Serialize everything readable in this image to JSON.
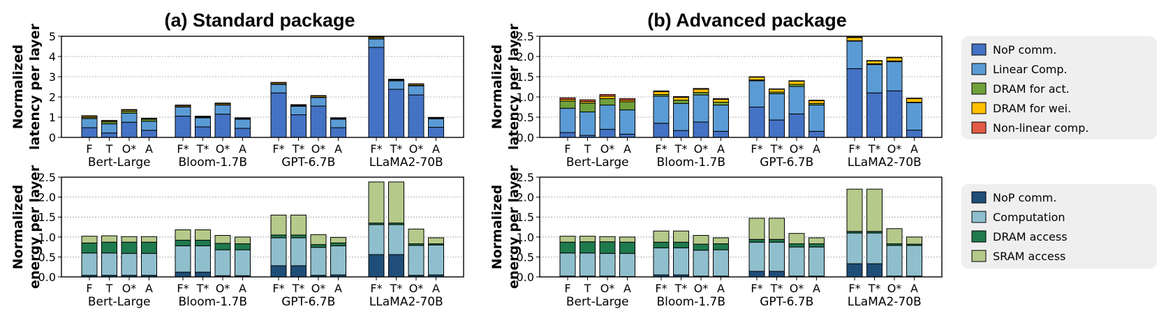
{
  "titles": {
    "left": "(a) Standard package",
    "right": "(b) Advanced package"
  },
  "groups": [
    "Bert-Large",
    "Bloom-1.7B",
    "GPT-6.7B",
    "LLaMA2-70B"
  ],
  "colors": {
    "latency": [
      "#4472c4",
      "#5b9bd5",
      "#70a03c",
      "#ffc000",
      "#e35b46"
    ],
    "energy": [
      "#1f4e79",
      "#8fbfcd",
      "#1f7a4d",
      "#b5c98a"
    ]
  },
  "legend_latency": [
    "NoP comm.",
    "Linear Comp.",
    "DRAM for act.",
    "DRAM for wei.",
    "Non-linear comp."
  ],
  "legend_energy": [
    "NoP comm.",
    "Computation",
    "DRAM access",
    "SRAM access"
  ],
  "chart_data": [
    {
      "id": "latency-standard",
      "type": "bar",
      "stacked": true,
      "title": "(a) Standard package",
      "ylabel": "Normalized latency per layer",
      "ylim": [
        0,
        5
      ],
      "yticks": [
        "0",
        "1",
        "2",
        "3",
        "4",
        "5"
      ],
      "grid": true,
      "groups": [
        "Bert-Large",
        "Bloom-1.7B",
        "GPT-6.7B",
        "LLaMA2-70B"
      ],
      "categories": [
        [
          "F",
          "T",
          "O*",
          "A"
        ],
        [
          "F*",
          "T*",
          "O*",
          "A"
        ],
        [
          "F*",
          "T*",
          "O*",
          "A"
        ],
        [
          "F*",
          "T*",
          "O*",
          "A"
        ]
      ],
      "series": [
        {
          "name": "NoP comm.",
          "values": [
            [
              0.48,
              0.22,
              0.75,
              0.35
            ],
            [
              1.05,
              0.52,
              1.15,
              0.45
            ],
            [
              2.2,
              1.12,
              1.55,
              0.48
            ],
            [
              4.45,
              2.38,
              2.1,
              0.5
            ]
          ]
        },
        {
          "name": "Linear Comp.",
          "values": [
            [
              0.45,
              0.45,
              0.45,
              0.45
            ],
            [
              0.45,
              0.45,
              0.45,
              0.45
            ],
            [
              0.42,
              0.42,
              0.42,
              0.42
            ],
            [
              0.42,
              0.42,
              0.45,
              0.42
            ]
          ]
        },
        {
          "name": "DRAM for act.",
          "values": [
            [
              0.06,
              0.1,
              0.1,
              0.1
            ],
            [
              0.02,
              0.02,
              0.02,
              0.02
            ],
            [
              0.02,
              0.02,
              0.02,
              0.02
            ],
            [
              0.02,
              0.02,
              0.02,
              0.02
            ]
          ]
        },
        {
          "name": "DRAM for wei.",
          "values": [
            [
              0.06,
              0.05,
              0.06,
              0.03
            ],
            [
              0.06,
              0.04,
              0.06,
              0.03
            ],
            [
              0.06,
              0.04,
              0.06,
              0.03
            ],
            [
              0.06,
              0.04,
              0.06,
              0.03
            ]
          ]
        },
        {
          "name": "Non-linear comp.",
          "values": [
            [
              0.02,
              0.02,
              0.02,
              0.02
            ],
            [
              0.02,
              0.02,
              0.02,
              0.02
            ],
            [
              0.02,
              0.02,
              0.02,
              0.02
            ],
            [
              0.02,
              0.02,
              0.02,
              0.02
            ]
          ]
        }
      ]
    },
    {
      "id": "latency-advanced",
      "type": "bar",
      "stacked": true,
      "title": "(b) Advanced package",
      "ylabel": "Normalized latency per layer",
      "ylim": [
        0,
        2.5
      ],
      "yticks": [
        "0.0",
        "0.5",
        "1.0",
        "1.5",
        "2.0",
        "2.5"
      ],
      "grid": true,
      "groups": [
        "Bert-Large",
        "Bloom-1.7B",
        "GPT-6.7B",
        "LLaMA2-70B"
      ],
      "categories": [
        [
          "F",
          "T",
          "O*",
          "A"
        ],
        [
          "F*",
          "T*",
          "O*",
          "A"
        ],
        [
          "F*",
          "T*",
          "O*",
          "A"
        ],
        [
          "F*",
          "T*",
          "O*",
          "A"
        ]
      ],
      "series": [
        {
          "name": "NoP comm.",
          "values": [
            [
              0.12,
              0.05,
              0.2,
              0.08
            ],
            [
              0.35,
              0.17,
              0.38,
              0.15
            ],
            [
              0.75,
              0.43,
              0.58,
              0.15
            ],
            [
              1.7,
              1.1,
              1.15,
              0.18
            ]
          ]
        },
        {
          "name": "Linear Comp.",
          "values": [
            [
              0.6,
              0.58,
              0.6,
              0.6
            ],
            [
              0.67,
              0.67,
              0.67,
              0.65
            ],
            [
              0.65,
              0.65,
              0.68,
              0.65
            ],
            [
              0.68,
              0.7,
              0.72,
              0.68
            ]
          ]
        },
        {
          "name": "DRAM for act.",
          "values": [
            [
              0.18,
              0.22,
              0.16,
              0.2
            ],
            [
              0.04,
              0.08,
              0.06,
              0.07
            ],
            [
              0.02,
              0.04,
              0.05,
              0.04
            ],
            [
              0.01,
              0.02,
              0.02,
              0.01
            ]
          ]
        },
        {
          "name": "DRAM for wei.",
          "values": [
            [
              0.04,
              0.04,
              0.06,
              0.04
            ],
            [
              0.07,
              0.07,
              0.08,
              0.07
            ],
            [
              0.07,
              0.07,
              0.08,
              0.07
            ],
            [
              0.08,
              0.07,
              0.08,
              0.09
            ]
          ]
        },
        {
          "name": "Non-linear comp.",
          "values": [
            [
              0.04,
              0.04,
              0.04,
              0.04
            ],
            [
              0.02,
              0.02,
              0.02,
              0.02
            ],
            [
              0.01,
              0.01,
              0.01,
              0.01
            ],
            [
              0.01,
              0.01,
              0.01,
              0.01
            ]
          ]
        }
      ]
    },
    {
      "id": "energy-standard",
      "type": "bar",
      "stacked": true,
      "ylabel": "Normalized energy per layer",
      "ylim": [
        0,
        2.5
      ],
      "yticks": [
        "0.0",
        "0.5",
        "1.0",
        "1.5",
        "2.0",
        "2.5"
      ],
      "grid": true,
      "groups": [
        "Bert-Large",
        "Bloom-1.7B",
        "GPT-6.7B",
        "LLaMA2-70B"
      ],
      "categories": [
        [
          "F",
          "T",
          "O*",
          "A"
        ],
        [
          "F*",
          "T*",
          "O*",
          "A"
        ],
        [
          "F*",
          "T*",
          "O*",
          "A"
        ],
        [
          "F*",
          "T*",
          "O*",
          "A"
        ]
      ],
      "series": [
        {
          "name": "NoP comm.",
          "values": [
            [
              0.04,
              0.04,
              0.04,
              0.04
            ],
            [
              0.12,
              0.12,
              0.03,
              0.03
            ],
            [
              0.28,
              0.28,
              0.04,
              0.05
            ],
            [
              0.56,
              0.56,
              0.04,
              0.05
            ]
          ]
        },
        {
          "name": "Computation",
          "values": [
            [
              0.56,
              0.56,
              0.55,
              0.55
            ],
            [
              0.66,
              0.66,
              0.65,
              0.65
            ],
            [
              0.7,
              0.7,
              0.7,
              0.73
            ],
            [
              0.75,
              0.75,
              0.75,
              0.75
            ]
          ]
        },
        {
          "name": "DRAM access",
          "values": [
            [
              0.25,
              0.27,
              0.28,
              0.28
            ],
            [
              0.14,
              0.14,
              0.16,
              0.15
            ],
            [
              0.07,
              0.07,
              0.07,
              0.07
            ],
            [
              0.04,
              0.04,
              0.04,
              0.03
            ]
          ]
        },
        {
          "name": "SRAM access",
          "values": [
            [
              0.17,
              0.16,
              0.14,
              0.14
            ],
            [
              0.26,
              0.26,
              0.2,
              0.17
            ],
            [
              0.5,
              0.5,
              0.25,
              0.14
            ],
            [
              1.03,
              1.03,
              0.37,
              0.15
            ]
          ]
        }
      ]
    },
    {
      "id": "energy-advanced",
      "type": "bar",
      "stacked": true,
      "ylabel": "Normalized energy per layer",
      "ylim": [
        0,
        2.5
      ],
      "yticks": [
        "0.0",
        "0.5",
        "1.0",
        "1.5",
        "2.0",
        "2.5"
      ],
      "grid": true,
      "groups": [
        "Bert-Large",
        "Bloom-1.7B",
        "GPT-6.7B",
        "LLaMA2-70B"
      ],
      "categories": [
        [
          "F",
          "T",
          "O*",
          "A"
        ],
        [
          "F*",
          "T*",
          "O*",
          "A"
        ],
        [
          "F*",
          "T*",
          "O*",
          "A"
        ],
        [
          "F*",
          "T*",
          "O*",
          "A"
        ]
      ],
      "series": [
        {
          "name": "NoP comm.",
          "values": [
            [
              0.02,
              0.02,
              0.02,
              0.01
            ],
            [
              0.05,
              0.05,
              0.02,
              0.02
            ],
            [
              0.14,
              0.14,
              0.02,
              0.02
            ],
            [
              0.33,
              0.33,
              0.02,
              0.02
            ]
          ]
        },
        {
          "name": "Computation",
          "values": [
            [
              0.58,
              0.58,
              0.57,
              0.58
            ],
            [
              0.68,
              0.68,
              0.65,
              0.66
            ],
            [
              0.73,
              0.73,
              0.73,
              0.73
            ],
            [
              0.77,
              0.77,
              0.77,
              0.77
            ]
          ]
        },
        {
          "name": "DRAM access",
          "values": [
            [
              0.27,
              0.28,
              0.29,
              0.28
            ],
            [
              0.14,
              0.14,
              0.15,
              0.15
            ],
            [
              0.07,
              0.07,
              0.08,
              0.08
            ],
            [
              0.04,
              0.04,
              0.04,
              0.03
            ]
          ]
        },
        {
          "name": "SRAM access",
          "values": [
            [
              0.15,
              0.14,
              0.13,
              0.13
            ],
            [
              0.28,
              0.28,
              0.22,
              0.15
            ],
            [
              0.53,
              0.53,
              0.26,
              0.15
            ],
            [
              1.06,
              1.06,
              0.38,
              0.18
            ]
          ]
        }
      ]
    }
  ]
}
